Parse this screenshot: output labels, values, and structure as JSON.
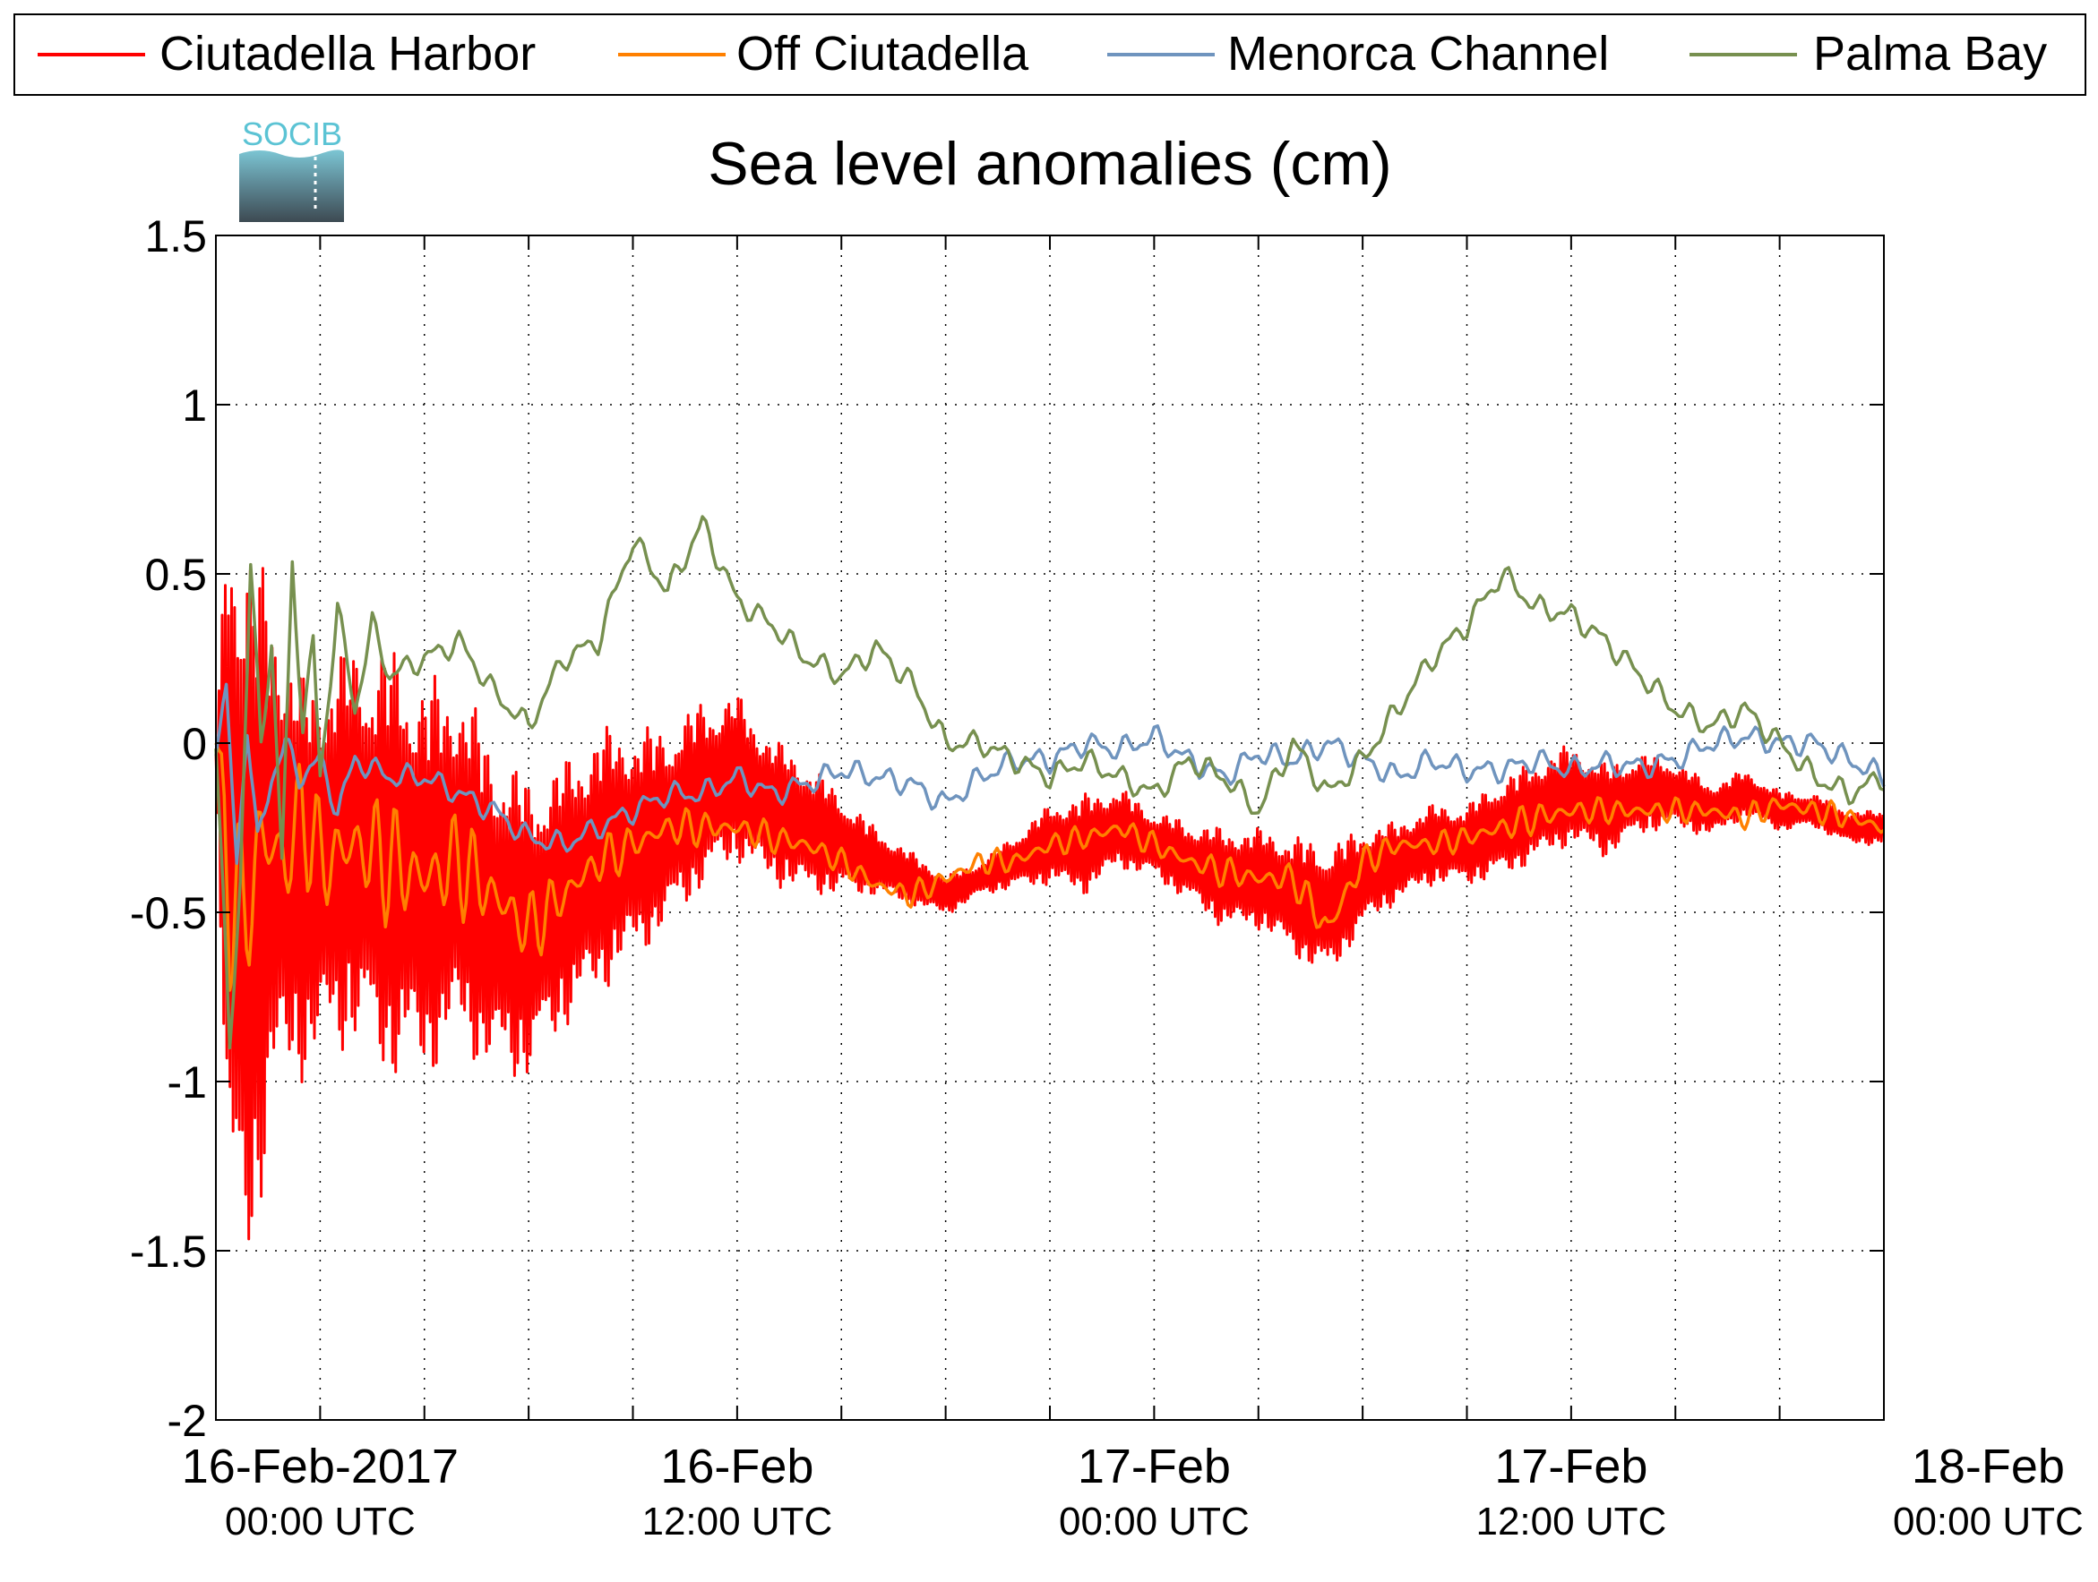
{
  "logo": {
    "text": "SOCIB"
  },
  "chart_data": {
    "type": "line",
    "title": "Sea level anomalies (cm)",
    "xlabel": "",
    "ylabel": "",
    "ylim": [
      -2,
      1.5
    ],
    "yticks": [
      "1.5",
      "1",
      "0.5",
      "0",
      "-0.5",
      "-1",
      "-1.5",
      "-2"
    ],
    "ytick_values": [
      1.5,
      1,
      0.5,
      0,
      -0.5,
      -1,
      -1.5,
      -2
    ],
    "xlim_hours": [
      -3,
      45
    ],
    "x_unit": "hours since 16-Feb-2017 00:00 UTC",
    "xtick_labels": [
      {
        "hour": 0,
        "date": "16-Feb-2017",
        "time": "00:00 UTC"
      },
      {
        "hour": 12,
        "date": "16-Feb",
        "time": "12:00 UTC"
      },
      {
        "hour": 24,
        "date": "17-Feb",
        "time": "00:00 UTC"
      },
      {
        "hour": 36,
        "date": "17-Feb",
        "time": "12:00 UTC"
      },
      {
        "hour": 48,
        "date": "18-Feb",
        "time": "00:00 UTC"
      }
    ],
    "minor_tick_hours": [
      0,
      3,
      6,
      9,
      12,
      15,
      18,
      21,
      24,
      27,
      30,
      33,
      36,
      39,
      42,
      45
    ],
    "grid": true,
    "legend_position": "top",
    "series": [
      {
        "name": "Ciutadella Harbor",
        "color": "#ff0000",
        "style": "noisy",
        "x": [
          -3,
          -2.6,
          -2.2,
          -1.8,
          -1.4,
          -1,
          -0.5,
          0,
          1,
          2,
          3,
          4,
          5,
          6,
          7,
          8,
          9,
          10,
          11,
          12,
          13,
          14,
          15,
          16,
          17,
          18,
          19,
          20,
          21,
          22,
          23,
          24,
          25,
          26,
          27,
          28,
          29,
          30,
          31,
          32,
          33,
          34,
          35,
          36,
          37,
          38,
          39,
          40,
          41,
          42,
          43,
          44,
          45
        ],
        "values": [
          -0.05,
          -0.3,
          -0.5,
          -0.45,
          -0.3,
          -0.35,
          -0.4,
          -0.35,
          -0.3,
          -0.35,
          -0.4,
          -0.35,
          -0.5,
          -0.55,
          -0.45,
          -0.35,
          -0.3,
          -0.25,
          -0.15,
          -0.1,
          -0.2,
          -0.25,
          -0.3,
          -0.35,
          -0.4,
          -0.45,
          -0.4,
          -0.35,
          -0.3,
          -0.3,
          -0.25,
          -0.3,
          -0.35,
          -0.4,
          -0.4,
          -0.45,
          -0.5,
          -0.4,
          -0.35,
          -0.3,
          -0.3,
          -0.25,
          -0.2,
          -0.15,
          -0.2,
          -0.15,
          -0.15,
          -0.2,
          -0.15,
          -0.2,
          -0.2,
          -0.25,
          -0.25
        ],
        "amplitude": [
          0.05,
          1.2,
          1.2,
          1.0,
          0.8,
          0.7,
          0.6,
          0.6,
          0.6,
          0.65,
          0.6,
          0.55,
          0.5,
          0.45,
          0.4,
          0.4,
          0.35,
          0.3,
          0.28,
          0.25,
          0.22,
          0.2,
          0.15,
          0.1,
          0.08,
          0.06,
          0.05,
          0.08,
          0.12,
          0.15,
          0.12,
          0.1,
          0.12,
          0.15,
          0.15,
          0.18,
          0.2,
          0.15,
          0.12,
          0.12,
          0.12,
          0.15,
          0.15,
          0.15,
          0.14,
          0.12,
          0.1,
          0.08,
          0.07,
          0.06,
          0.05,
          0.05,
          0.05
        ]
      },
      {
        "name": "Off Ciutadella",
        "color": "#ff8000",
        "style": "wavy",
        "x": [
          -3,
          -2.6,
          -2.2,
          -1.8,
          -1.4,
          -1,
          -0.5,
          0,
          1,
          2,
          3,
          4,
          5,
          6,
          7,
          8,
          9,
          10,
          11,
          12,
          13,
          14,
          15,
          16,
          17,
          18,
          19,
          20,
          21,
          22,
          23,
          24,
          25,
          26,
          27,
          28,
          29,
          30,
          31,
          32,
          33,
          34,
          35,
          36,
          37,
          38,
          39,
          40,
          41,
          42,
          43,
          44,
          45
        ],
        "values": [
          0.0,
          -0.4,
          -0.55,
          -0.3,
          -0.3,
          -0.35,
          -0.2,
          -0.35,
          -0.3,
          -0.35,
          -0.4,
          -0.35,
          -0.45,
          -0.55,
          -0.45,
          -0.35,
          -0.3,
          -0.25,
          -0.25,
          -0.25,
          -0.28,
          -0.3,
          -0.35,
          -0.42,
          -0.45,
          -0.4,
          -0.35,
          -0.35,
          -0.3,
          -0.28,
          -0.25,
          -0.3,
          -0.35,
          -0.38,
          -0.4,
          -0.4,
          -0.55,
          -0.35,
          -0.3,
          -0.3,
          -0.28,
          -0.25,
          -0.22,
          -0.2,
          -0.2,
          -0.2,
          -0.2,
          -0.2,
          -0.22,
          -0.18,
          -0.2,
          -0.22,
          -0.25
        ],
        "amplitude": [
          0.05,
          0.35,
          0.3,
          0.25,
          0.25,
          0.25,
          0.2,
          0.2,
          0.2,
          0.2,
          0.18,
          0.17,
          0.15,
          0.12,
          0.1,
          0.08,
          0.07,
          0.06,
          0.06,
          0.05,
          0.05,
          0.05,
          0.04,
          0.04,
          0.04,
          0.04,
          0.04,
          0.04,
          0.04,
          0.04,
          0.04,
          0.04,
          0.04,
          0.05,
          0.05,
          0.05,
          0.08,
          0.05,
          0.04,
          0.04,
          0.04,
          0.05,
          0.05,
          0.05,
          0.04,
          0.04,
          0.04,
          0.04,
          0.04,
          0.04,
          0.04,
          0.04,
          0.04
        ]
      },
      {
        "name": "Menorca Channel",
        "color": "#6f94be",
        "style": "smooth",
        "x": [
          -3,
          -2.7,
          -2.4,
          -2.1,
          -1.8,
          -1.4,
          -1,
          -0.6,
          0,
          0.5,
          1,
          2,
          3,
          4,
          5,
          6,
          7,
          8,
          9,
          10,
          11,
          12,
          13,
          14,
          15,
          16,
          17,
          18,
          19,
          20,
          21,
          22,
          23,
          24,
          25,
          26,
          27,
          28,
          29,
          30,
          31,
          32,
          33,
          34,
          35,
          36,
          37,
          38,
          39,
          40,
          41,
          42,
          43,
          44,
          45
        ],
        "values": [
          0.0,
          0.14,
          -0.35,
          0.05,
          -0.3,
          -0.1,
          0.0,
          -0.1,
          -0.05,
          -0.2,
          -0.05,
          -0.1,
          -0.1,
          -0.15,
          -0.2,
          -0.28,
          -0.3,
          -0.25,
          -0.2,
          -0.15,
          -0.15,
          -0.1,
          -0.15,
          -0.12,
          -0.08,
          -0.1,
          -0.12,
          -0.18,
          -0.1,
          -0.05,
          -0.05,
          0.0,
          -0.02,
          0.02,
          -0.05,
          -0.1,
          -0.03,
          -0.05,
          0.0,
          -0.05,
          -0.1,
          -0.05,
          -0.08,
          -0.08,
          -0.05,
          -0.08,
          -0.06,
          -0.07,
          -0.05,
          0.0,
          0.02,
          0.0,
          0.0,
          -0.05,
          -0.1
        ]
      },
      {
        "name": "Palma Bay",
        "color": "#77904f",
        "style": "smooth",
        "x": [
          -3,
          -2.6,
          -2.3,
          -2.0,
          -1.7,
          -1.4,
          -1.1,
          -0.8,
          -0.5,
          -0.2,
          0,
          0.5,
          1,
          1.5,
          2,
          3,
          4,
          5,
          6,
          7,
          8,
          9,
          10,
          11,
          12,
          13,
          14,
          15,
          16,
          17,
          18,
          19,
          20,
          21,
          22,
          23,
          24,
          25,
          26,
          27,
          28,
          29,
          30,
          31,
          32,
          33,
          34,
          35,
          36,
          37,
          38,
          39,
          40,
          41,
          42,
          43,
          44,
          45
        ],
        "values": [
          0.0,
          -0.9,
          -0.4,
          0.52,
          0.0,
          0.3,
          -0.35,
          0.53,
          0.05,
          0.3,
          -0.1,
          0.4,
          0.1,
          0.35,
          0.2,
          0.25,
          0.3,
          0.15,
          0.05,
          0.25,
          0.3,
          0.6,
          0.45,
          0.65,
          0.42,
          0.35,
          0.25,
          0.2,
          0.28,
          0.18,
          0.0,
          0.0,
          -0.05,
          -0.1,
          -0.05,
          -0.1,
          -0.15,
          -0.05,
          -0.1,
          -0.2,
          0.0,
          -0.15,
          -0.05,
          0.1,
          0.25,
          0.35,
          0.5,
          0.4,
          0.38,
          0.3,
          0.2,
          0.1,
          0.05,
          0.1,
          0.0,
          -0.1,
          -0.15,
          -0.1
        ]
      }
    ]
  }
}
